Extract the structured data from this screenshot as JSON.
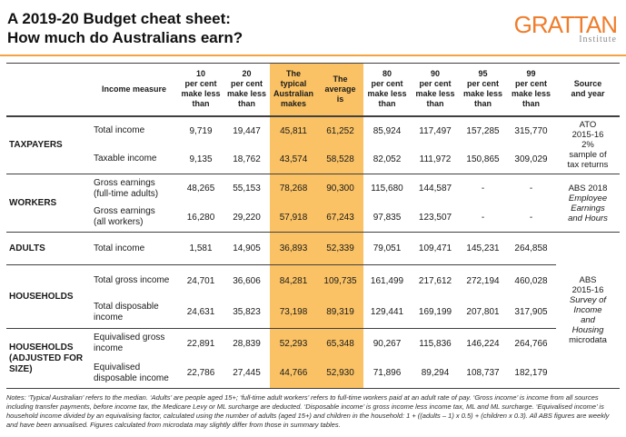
{
  "header": {
    "title_line1": "A 2019-20 Budget cheat sheet:",
    "title_line2": "How much do Australians earn?",
    "logo_word": "GRATTAN",
    "logo_sub": "Institute"
  },
  "colors": {
    "highlight_orange": "#fac264",
    "logo_orange": "#ef7d2b",
    "rule_orange": "#f4a43f",
    "line_dark": "#404040"
  },
  "chart_data": {
    "type": "table",
    "title": "A 2019-20 Budget cheat sheet: How much do Australians earn?",
    "headers": {
      "measure": "Income measure",
      "p10": "10\nper cent\nmake less\nthan",
      "p20": "20\nper cent\nmake less\nthan",
      "median": "The\ntypical\nAustralian\nmakes",
      "mean": "The\naverage\nis",
      "p80": "80\nper cent\nmake less\nthan",
      "p90": "90\nper cent\nmake less\nthan",
      "p95": "95\nper cent\nmake less\nthan",
      "p99": "99\nper cent\nmake less\nthan",
      "source": "Source\nand year"
    },
    "rows": [
      {
        "group": "TAXPAYERS",
        "measure": "Total income",
        "p10": "9,719",
        "p20": "19,447",
        "median": "45,811",
        "mean": "61,252",
        "p80": "85,924",
        "p90": "117,497",
        "p95": "157,285",
        "p99": "315,770"
      },
      {
        "measure": "Taxable income",
        "p10": "9,135",
        "p20": "18,762",
        "median": "43,574",
        "mean": "58,528",
        "p80": "82,052",
        "p90": "111,972",
        "p95": "150,865",
        "p99": "309,029"
      },
      {
        "group": "WORKERS",
        "measure": "Gross earnings\n(full-time adults)",
        "p10": "48,265",
        "p20": "55,153",
        "median": "78,268",
        "mean": "90,300",
        "p80": "115,680",
        "p90": "144,587",
        "p95": "-",
        "p99": "-"
      },
      {
        "measure": "Gross earnings\n(all workers)",
        "p10": "16,280",
        "p20": "29,220",
        "median": "57,918",
        "mean": "67,243",
        "p80": "97,835",
        "p90": "123,507",
        "p95": "-",
        "p99": "-"
      },
      {
        "group": "ADULTS",
        "measure": "Total income",
        "p10": "1,581",
        "p20": "14,905",
        "median": "36,893",
        "mean": "52,339",
        "p80": "79,051",
        "p90": "109,471",
        "p95": "145,231",
        "p99": "264,858"
      },
      {
        "group": "HOUSEHOLDS",
        "measure": "Total gross income",
        "p10": "24,701",
        "p20": "36,606",
        "median": "84,281",
        "mean": "109,735",
        "p80": "161,499",
        "p90": "217,612",
        "p95": "272,194",
        "p99": "460,028"
      },
      {
        "measure": "Total disposable\nincome",
        "p10": "24,631",
        "p20": "35,823",
        "median": "73,198",
        "mean": "89,319",
        "p80": "129,441",
        "p90": "169,199",
        "p95": "207,801",
        "p99": "317,905"
      },
      {
        "group": "HOUSEHOLDS\n(ADJUSTED FOR\nSIZE)",
        "measure": "Equivalised gross\nincome",
        "p10": "22,891",
        "p20": "28,839",
        "median": "52,293",
        "mean": "65,348",
        "p80": "90,267",
        "p90": "115,836",
        "p95": "146,224",
        "p99": "264,766"
      },
      {
        "measure": "Equivalised\ndisposable income",
        "p10": "22,786",
        "p20": "27,445",
        "median": "44,766",
        "mean": "52,930",
        "p80": "71,896",
        "p90": "89,294",
        "p95": "108,737",
        "p99": "182,179"
      }
    ],
    "sources": [
      {
        "plain1": "ATO\n2015-16\n2%\nsample of\ntax returns",
        "italic": "",
        "plain2": ""
      },
      {
        "plain1": "ABS 2018\n",
        "italic": "Employee\nEarnings\nand Hours",
        "plain2": ""
      },
      {
        "plain1": "ABS\n2015-16\n",
        "italic": "Survey of\nIncome\nand\nHousing\n",
        "plain2": "microdata"
      }
    ]
  },
  "notes": "Notes: ‘Typical Australian’ refers to the median. ‘Adults’ are people aged 15+; ‘full-time adult workers’ refers to full-time workers paid at an adult rate of pay. ‘Gross income’ is income from all sources including transfer payments, before income tax, the Medicare Levy or ML surcharge are deducted. ‘Disposable income’ is gross income less income tax, ML and ML surcharge. ‘Equivalised income’ is household income divided by an equivalising factor, calculated using the number of adults (aged 15+) and children in the household: 1 + ((adults – 1) x 0.5) + (children x 0.3). All ABS figures are weekly and have been annualised. Figures calculated from microdata may slightly differ from those in summary tables."
}
